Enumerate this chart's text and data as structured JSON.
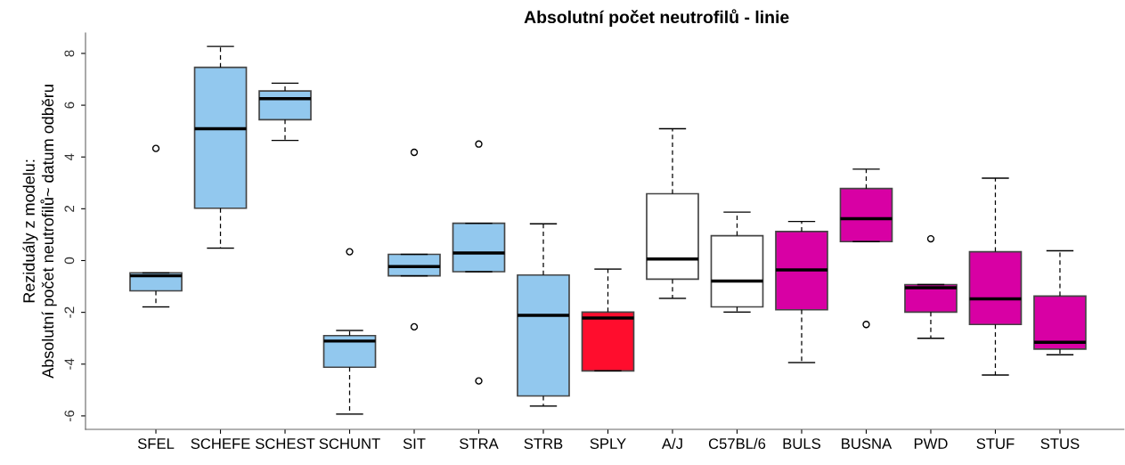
{
  "chart_data": {
    "type": "box",
    "title": "Absolutní počet neutrofilů - linie",
    "ylabel": "Reziduály z modelu:\nAbsolutní počet neutrofilů~ datum odběru",
    "categories": [
      "SFEL",
      "SCHEFE",
      "SCHEST",
      "SCHUNT",
      "SIT",
      "STRA",
      "STRB",
      "SPLY",
      "A/J",
      "C57BL/6",
      "BULS",
      "BUSNA",
      "PWD",
      "STUF",
      "STUS"
    ],
    "colors": [
      "#92c8ee",
      "#92c8ee",
      "#92c8ee",
      "#92c8ee",
      "#92c8ee",
      "#92c8ee",
      "#92c8ee",
      "#ff0d2d",
      "#ffffff",
      "#ffffff",
      "#d800a4",
      "#d800a4",
      "#d800a4",
      "#d800a4",
      "#d800a4"
    ],
    "boxes": [
      {
        "low": -1.79,
        "q1": -1.17,
        "median": -0.59,
        "q3": -0.48,
        "high": -0.48,
        "outliers": [
          4.33
        ]
      },
      {
        "low": 0.48,
        "q1": 2.02,
        "median": 5.09,
        "q3": 7.46,
        "high": 8.27
      },
      {
        "low": 4.64,
        "q1": 5.44,
        "median": 6.25,
        "q3": 6.55,
        "high": 6.85
      },
      {
        "low": -5.93,
        "q1": -4.12,
        "median": -3.11,
        "q3": -2.9,
        "high": -2.7,
        "outliers": [
          0.34
        ]
      },
      {
        "low": -0.59,
        "q1": -0.59,
        "median": -0.23,
        "q3": 0.24,
        "high": 0.24,
        "outliers": [
          4.18,
          -2.56
        ]
      },
      {
        "low": -0.43,
        "q1": -0.43,
        "median": 0.29,
        "q3": 1.44,
        "high": 1.44,
        "outliers": [
          4.5,
          -4.65
        ]
      },
      {
        "low": -5.62,
        "q1": -5.23,
        "median": -2.12,
        "q3": -0.56,
        "high": 1.42
      },
      {
        "low": -4.26,
        "q1": -4.26,
        "median": -2.22,
        "q3": -1.99,
        "high": -0.33
      },
      {
        "low": -1.46,
        "q1": -0.72,
        "median": 0.06,
        "q3": 2.58,
        "high": 5.09
      },
      {
        "low": -1.99,
        "q1": -1.79,
        "median": -0.79,
        "q3": 0.96,
        "high": 1.87
      },
      {
        "low": -3.94,
        "q1": -1.9,
        "median": -0.36,
        "q3": 1.12,
        "high": 1.51
      },
      {
        "low": 0.73,
        "q1": 0.73,
        "median": 1.62,
        "q3": 2.78,
        "high": 3.53,
        "outliers": [
          -2.47
        ]
      },
      {
        "low": -3.0,
        "q1": -1.99,
        "median": -1.05,
        "q3": -0.93,
        "high": -0.93,
        "outliers": [
          0.84
        ]
      },
      {
        "low": -4.42,
        "q1": -2.47,
        "median": -1.48,
        "q3": 0.34,
        "high": 3.18
      },
      {
        "low": -3.64,
        "q1": -3.42,
        "median": -3.16,
        "q3": -1.37,
        "high": 0.38
      }
    ],
    "ylim": [
      -6.52,
      8.79
    ],
    "yticks": [
      -6,
      -4,
      -2,
      0,
      2,
      4,
      6,
      8
    ],
    "grid": false,
    "legend": false
  }
}
